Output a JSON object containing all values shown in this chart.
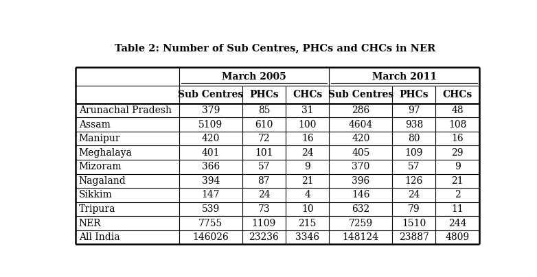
{
  "title": "Table 2: Number of Sub Centres, PHCs and CHCs in NER",
  "row_labels": [
    "",
    "",
    "Arunachal Pradesh",
    "Assam",
    "Manipur",
    "Meghalaya",
    "Mizoram",
    "Nagaland",
    "Sikkim",
    "Tripura",
    "NER",
    "All India"
  ],
  "col_header_groups": [
    "March 2005",
    "March 2011"
  ],
  "col_headers": [
    "Sub Centres",
    "PHCs",
    "CHCs",
    "Sub Centres",
    "PHCs",
    "CHCs"
  ],
  "data": [
    [
      379,
      85,
      31,
      286,
      97,
      48
    ],
    [
      5109,
      610,
      100,
      4604,
      938,
      108
    ],
    [
      420,
      72,
      16,
      420,
      80,
      16
    ],
    [
      401,
      101,
      24,
      405,
      109,
      29
    ],
    [
      366,
      57,
      9,
      370,
      57,
      9
    ],
    [
      394,
      87,
      21,
      396,
      126,
      21
    ],
    [
      147,
      24,
      4,
      146,
      24,
      2
    ],
    [
      539,
      73,
      10,
      632,
      79,
      11
    ],
    [
      7755,
      1109,
      215,
      7259,
      1510,
      244
    ],
    [
      146026,
      23236,
      3346,
      148124,
      23887,
      4809
    ]
  ],
  "background_color": "#ffffff",
  "line_color": "#000000",
  "title_fontsize": 10.5,
  "header_fontsize": 10,
  "cell_fontsize": 10
}
